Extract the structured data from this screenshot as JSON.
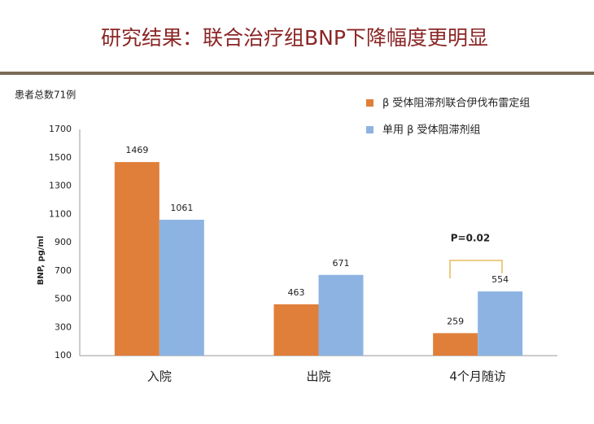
{
  "chart_data": {
    "type": "bar",
    "title": "研究结果：联合治疗组BNP下降幅度更明显",
    "note": "患者总数71例",
    "y_label": "BNP, pg/ml",
    "annotation": "P=0.02",
    "categories": [
      "入院",
      "出院",
      "4个月随访"
    ],
    "series": [
      {
        "name": "β 受体阻滞剂联合伊伐布雷定组",
        "color": "#e07f3a",
        "values": [
          1469,
          463,
          259
        ]
      },
      {
        "name": "单用 β 受体阻滞剂组",
        "color": "#8db3e2",
        "values": [
          1061,
          671,
          554
        ]
      }
    ],
    "ylim": [
      100,
      1700
    ],
    "yticks": [
      100,
      300,
      500,
      700,
      900,
      1100,
      1300,
      1500,
      1700
    ],
    "grid": false
  }
}
